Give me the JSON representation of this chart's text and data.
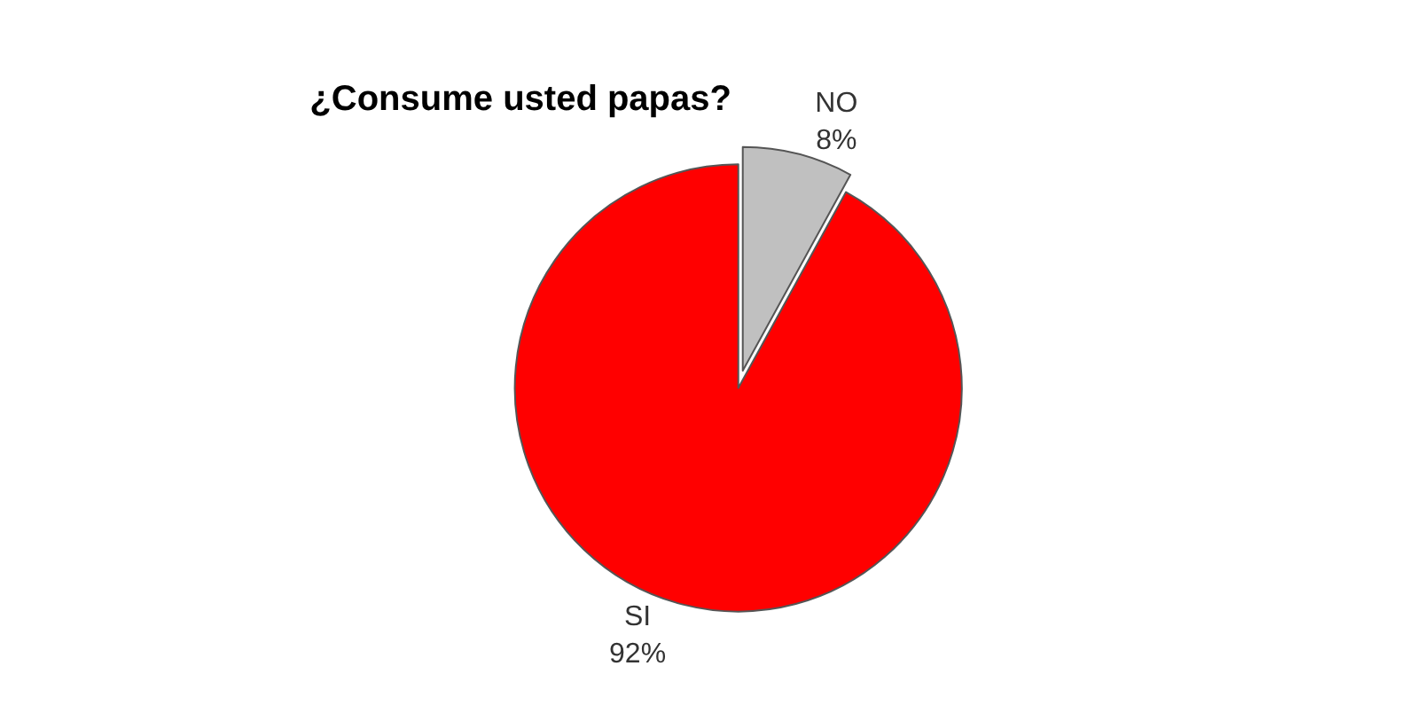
{
  "chart_data": {
    "type": "pie",
    "title": "¿Consume usted papas?",
    "categories": [
      "NO",
      "SI"
    ],
    "values": [
      8,
      92
    ],
    "value_labels": [
      "8%",
      "92%"
    ],
    "colors": [
      "#c0c0c0",
      "#ff0000"
    ],
    "legend": false
  }
}
